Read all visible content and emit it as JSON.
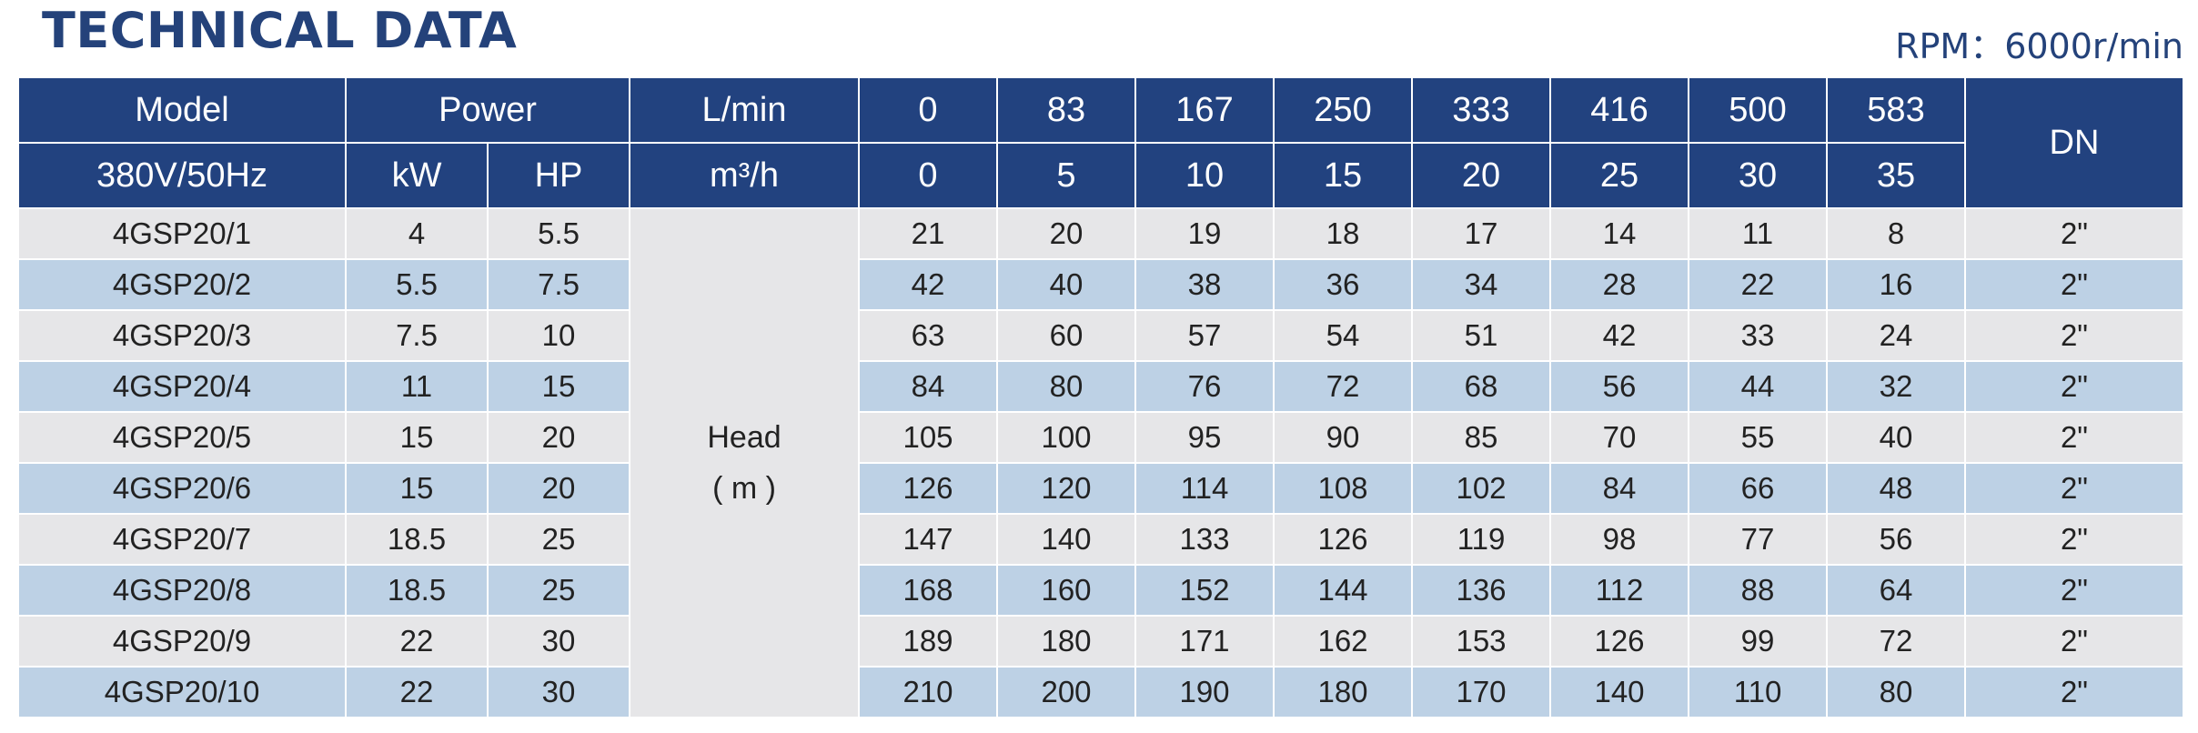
{
  "title": "TECHNICAL DATA",
  "rpm": "RPM：6000r/min",
  "header": {
    "model": "Model",
    "voltage": "380V/50Hz",
    "power": "Power",
    "kw": "kW",
    "hp": "HP",
    "lmin_label": "L/min",
    "m3h_label": "m³/h",
    "lmin_values": [
      "0",
      "83",
      "167",
      "250",
      "333",
      "416",
      "500",
      "583"
    ],
    "m3h_values": [
      "0",
      "5",
      "10",
      "15",
      "20",
      "25",
      "30",
      "35"
    ],
    "dn": "DN"
  },
  "head_label": {
    "line1": "Head",
    "line2": "( m )"
  },
  "rows": [
    {
      "model": "4GSP20/1",
      "kw": "4",
      "hp": "5.5",
      "heads": [
        "21",
        "20",
        "19",
        "18",
        "17",
        "14",
        "11",
        "8"
      ],
      "dn": "2\""
    },
    {
      "model": "4GSP20/2",
      "kw": "5.5",
      "hp": "7.5",
      "heads": [
        "42",
        "40",
        "38",
        "36",
        "34",
        "28",
        "22",
        "16"
      ],
      "dn": "2\""
    },
    {
      "model": "4GSP20/3",
      "kw": "7.5",
      "hp": "10",
      "heads": [
        "63",
        "60",
        "57",
        "54",
        "51",
        "42",
        "33",
        "24"
      ],
      "dn": "2\""
    },
    {
      "model": "4GSP20/4",
      "kw": "11",
      "hp": "15",
      "heads": [
        "84",
        "80",
        "76",
        "72",
        "68",
        "56",
        "44",
        "32"
      ],
      "dn": "2\""
    },
    {
      "model": "4GSP20/5",
      "kw": "15",
      "hp": "20",
      "heads": [
        "105",
        "100",
        "95",
        "90",
        "85",
        "70",
        "55",
        "40"
      ],
      "dn": "2\""
    },
    {
      "model": "4GSP20/6",
      "kw": "15",
      "hp": "20",
      "heads": [
        "126",
        "120",
        "114",
        "108",
        "102",
        "84",
        "66",
        "48"
      ],
      "dn": "2\""
    },
    {
      "model": "4GSP20/7",
      "kw": "18.5",
      "hp": "25",
      "heads": [
        "147",
        "140",
        "133",
        "126",
        "119",
        "98",
        "77",
        "56"
      ],
      "dn": "2\""
    },
    {
      "model": "4GSP20/8",
      "kw": "18.5",
      "hp": "25",
      "heads": [
        "168",
        "160",
        "152",
        "144",
        "136",
        "112",
        "88",
        "64"
      ],
      "dn": "2\""
    },
    {
      "model": "4GSP20/9",
      "kw": "22",
      "hp": "30",
      "heads": [
        "189",
        "180",
        "171",
        "162",
        "153",
        "126",
        "99",
        "72"
      ],
      "dn": "2\""
    },
    {
      "model": "4GSP20/10",
      "kw": "22",
      "hp": "30",
      "heads": [
        "210",
        "200",
        "190",
        "180",
        "170",
        "140",
        "110",
        "80"
      ],
      "dn": "2\""
    }
  ],
  "colors": {
    "header_bg": "#22427f",
    "row_light": "#e6e6e8",
    "row_blue": "#bdd1e5",
    "title": "#24427a"
  }
}
